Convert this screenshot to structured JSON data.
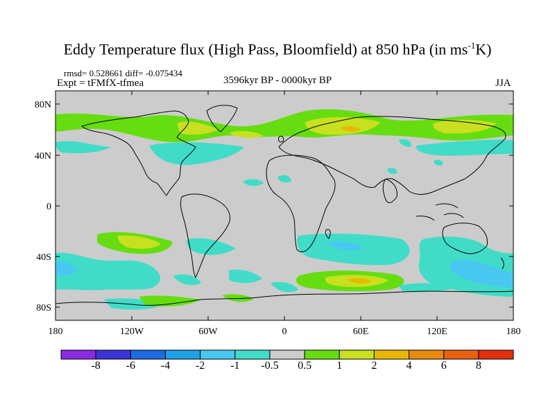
{
  "title": {
    "main": "Eddy Temperature flux (High Pass, Bloomfield) at 850 hPa (in ms",
    "sup": "-1",
    "end": "K)"
  },
  "stats": {
    "rmsd_diff": "rmsd= 0.528661 diff= -0.075434",
    "expt": "Expt = tFMfX-tfmea",
    "period": "3596kyr BP - 0000kyr BP",
    "season": "JJA"
  },
  "lat_labels": [
    "80N",
    "40N",
    "0",
    "40S",
    "80S"
  ],
  "lon_labels": [
    "180",
    "120W",
    "60W",
    "0",
    "60E",
    "120E",
    "180"
  ],
  "colorbar": {
    "colors": [
      "#8a2be2",
      "#3a34d6",
      "#1e6ae0",
      "#1ea0e6",
      "#48c8f0",
      "#40dcc8",
      "#cccccc",
      "#66dd10",
      "#c8e020",
      "#e8b800",
      "#e88a10",
      "#e86010",
      "#e03010"
    ],
    "labels": [
      "-8",
      "-6",
      "-4",
      "-2",
      "-1",
      "-0.5",
      "0.5",
      "1",
      "2",
      "4",
      "6",
      "8"
    ]
  },
  "palette": {
    "ocean_land_background": "#cccccc",
    "positive_light": "#66dd10",
    "positive_mid": "#c8e020",
    "positive_strong": "#e8b800",
    "negative_light": "#40dcc8",
    "negative_mid": "#48c8f0",
    "negative_strong": "#1ea0e6"
  }
}
